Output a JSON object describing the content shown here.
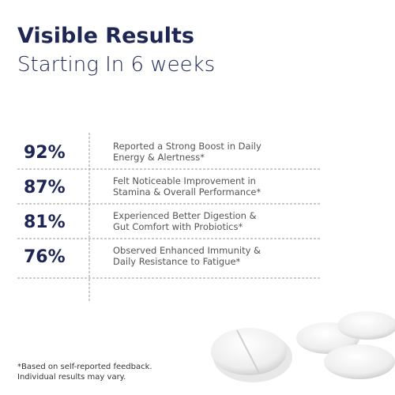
{
  "header": {
    "title": "Visible Results",
    "subtitle": "Starting In 6 weeks"
  },
  "stats": [
    {
      "percent": "92%",
      "lines": [
        "Reported a Strong Boost in Daily",
        "Energy & Alertness*"
      ]
    },
    {
      "percent": "87%",
      "lines": [
        "Felt Noticeable Improvement in",
        "Stamina & Overall Performance*"
      ]
    },
    {
      "percent": "81%",
      "lines": [
        "Experienced Better Digestion &",
        "Gut Comfort with Probiotics*"
      ]
    },
    {
      "percent": "76%",
      "lines": [
        "Observed Enhanced Immunity &",
        "Daily Resistance to Fatigue*"
      ]
    }
  ],
  "footnote": [
    "*Based on self-reported feedback.",
    "Individual results may vary."
  ]
}
